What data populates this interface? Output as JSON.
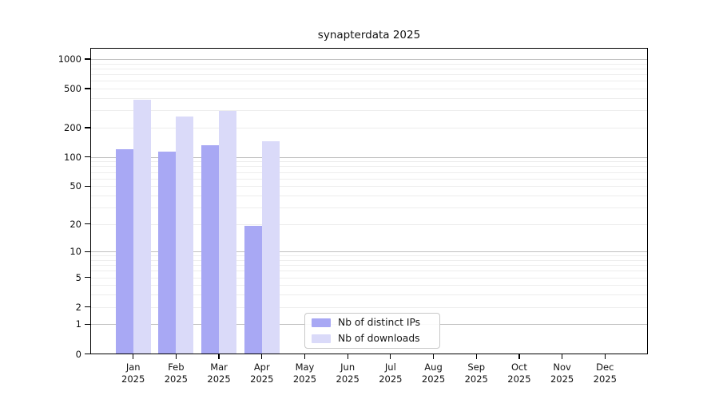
{
  "chart_data": {
    "type": "bar",
    "scale": "log1p",
    "title": "synapterdata 2025",
    "year": "2025",
    "categories": [
      "Jan 2025",
      "Feb 2025",
      "Mar 2025",
      "Apr 2025",
      "May 2025",
      "Jun 2025",
      "Jul 2025",
      "Aug 2025",
      "Sep 2025",
      "Oct 2025",
      "Nov 2025",
      "Dec 2025"
    ],
    "month_labels": [
      "Jan",
      "Feb",
      "Mar",
      "Apr",
      "May",
      "Jun",
      "Jul",
      "Aug",
      "Sep",
      "Oct",
      "Nov",
      "Dec"
    ],
    "series": [
      {
        "name": "Nb of distinct IPs",
        "color": "#a8a8f4",
        "values": [
          120,
          113,
          132,
          19,
          null,
          null,
          null,
          null,
          null,
          null,
          null,
          null
        ]
      },
      {
        "name": "Nb of downloads",
        "color": "#dadaf9",
        "values": [
          383,
          258,
          297,
          144,
          null,
          null,
          null,
          null,
          null,
          null,
          null,
          null
        ]
      }
    ],
    "y_ticks": [
      0,
      1,
      2,
      5,
      10,
      20,
      50,
      100,
      200,
      500,
      1000
    ],
    "ylim": [
      0,
      1300
    ],
    "grid": {
      "major_lines": [
        1,
        10,
        100,
        1000
      ],
      "minor_multiples": [
        2,
        3,
        4,
        5,
        6,
        7,
        8,
        9
      ],
      "major_color": "#c0c0c0",
      "minor_color": "#ededed"
    },
    "legend_position": "lower-center",
    "xlabel": "",
    "ylabel": ""
  },
  "colors": {
    "background": "#ffffff",
    "spine": "#000000",
    "bar_distinct_ips": "#a8a8f4",
    "bar_downloads": "#dadaf9",
    "legend_border": "#c9c9c9"
  }
}
